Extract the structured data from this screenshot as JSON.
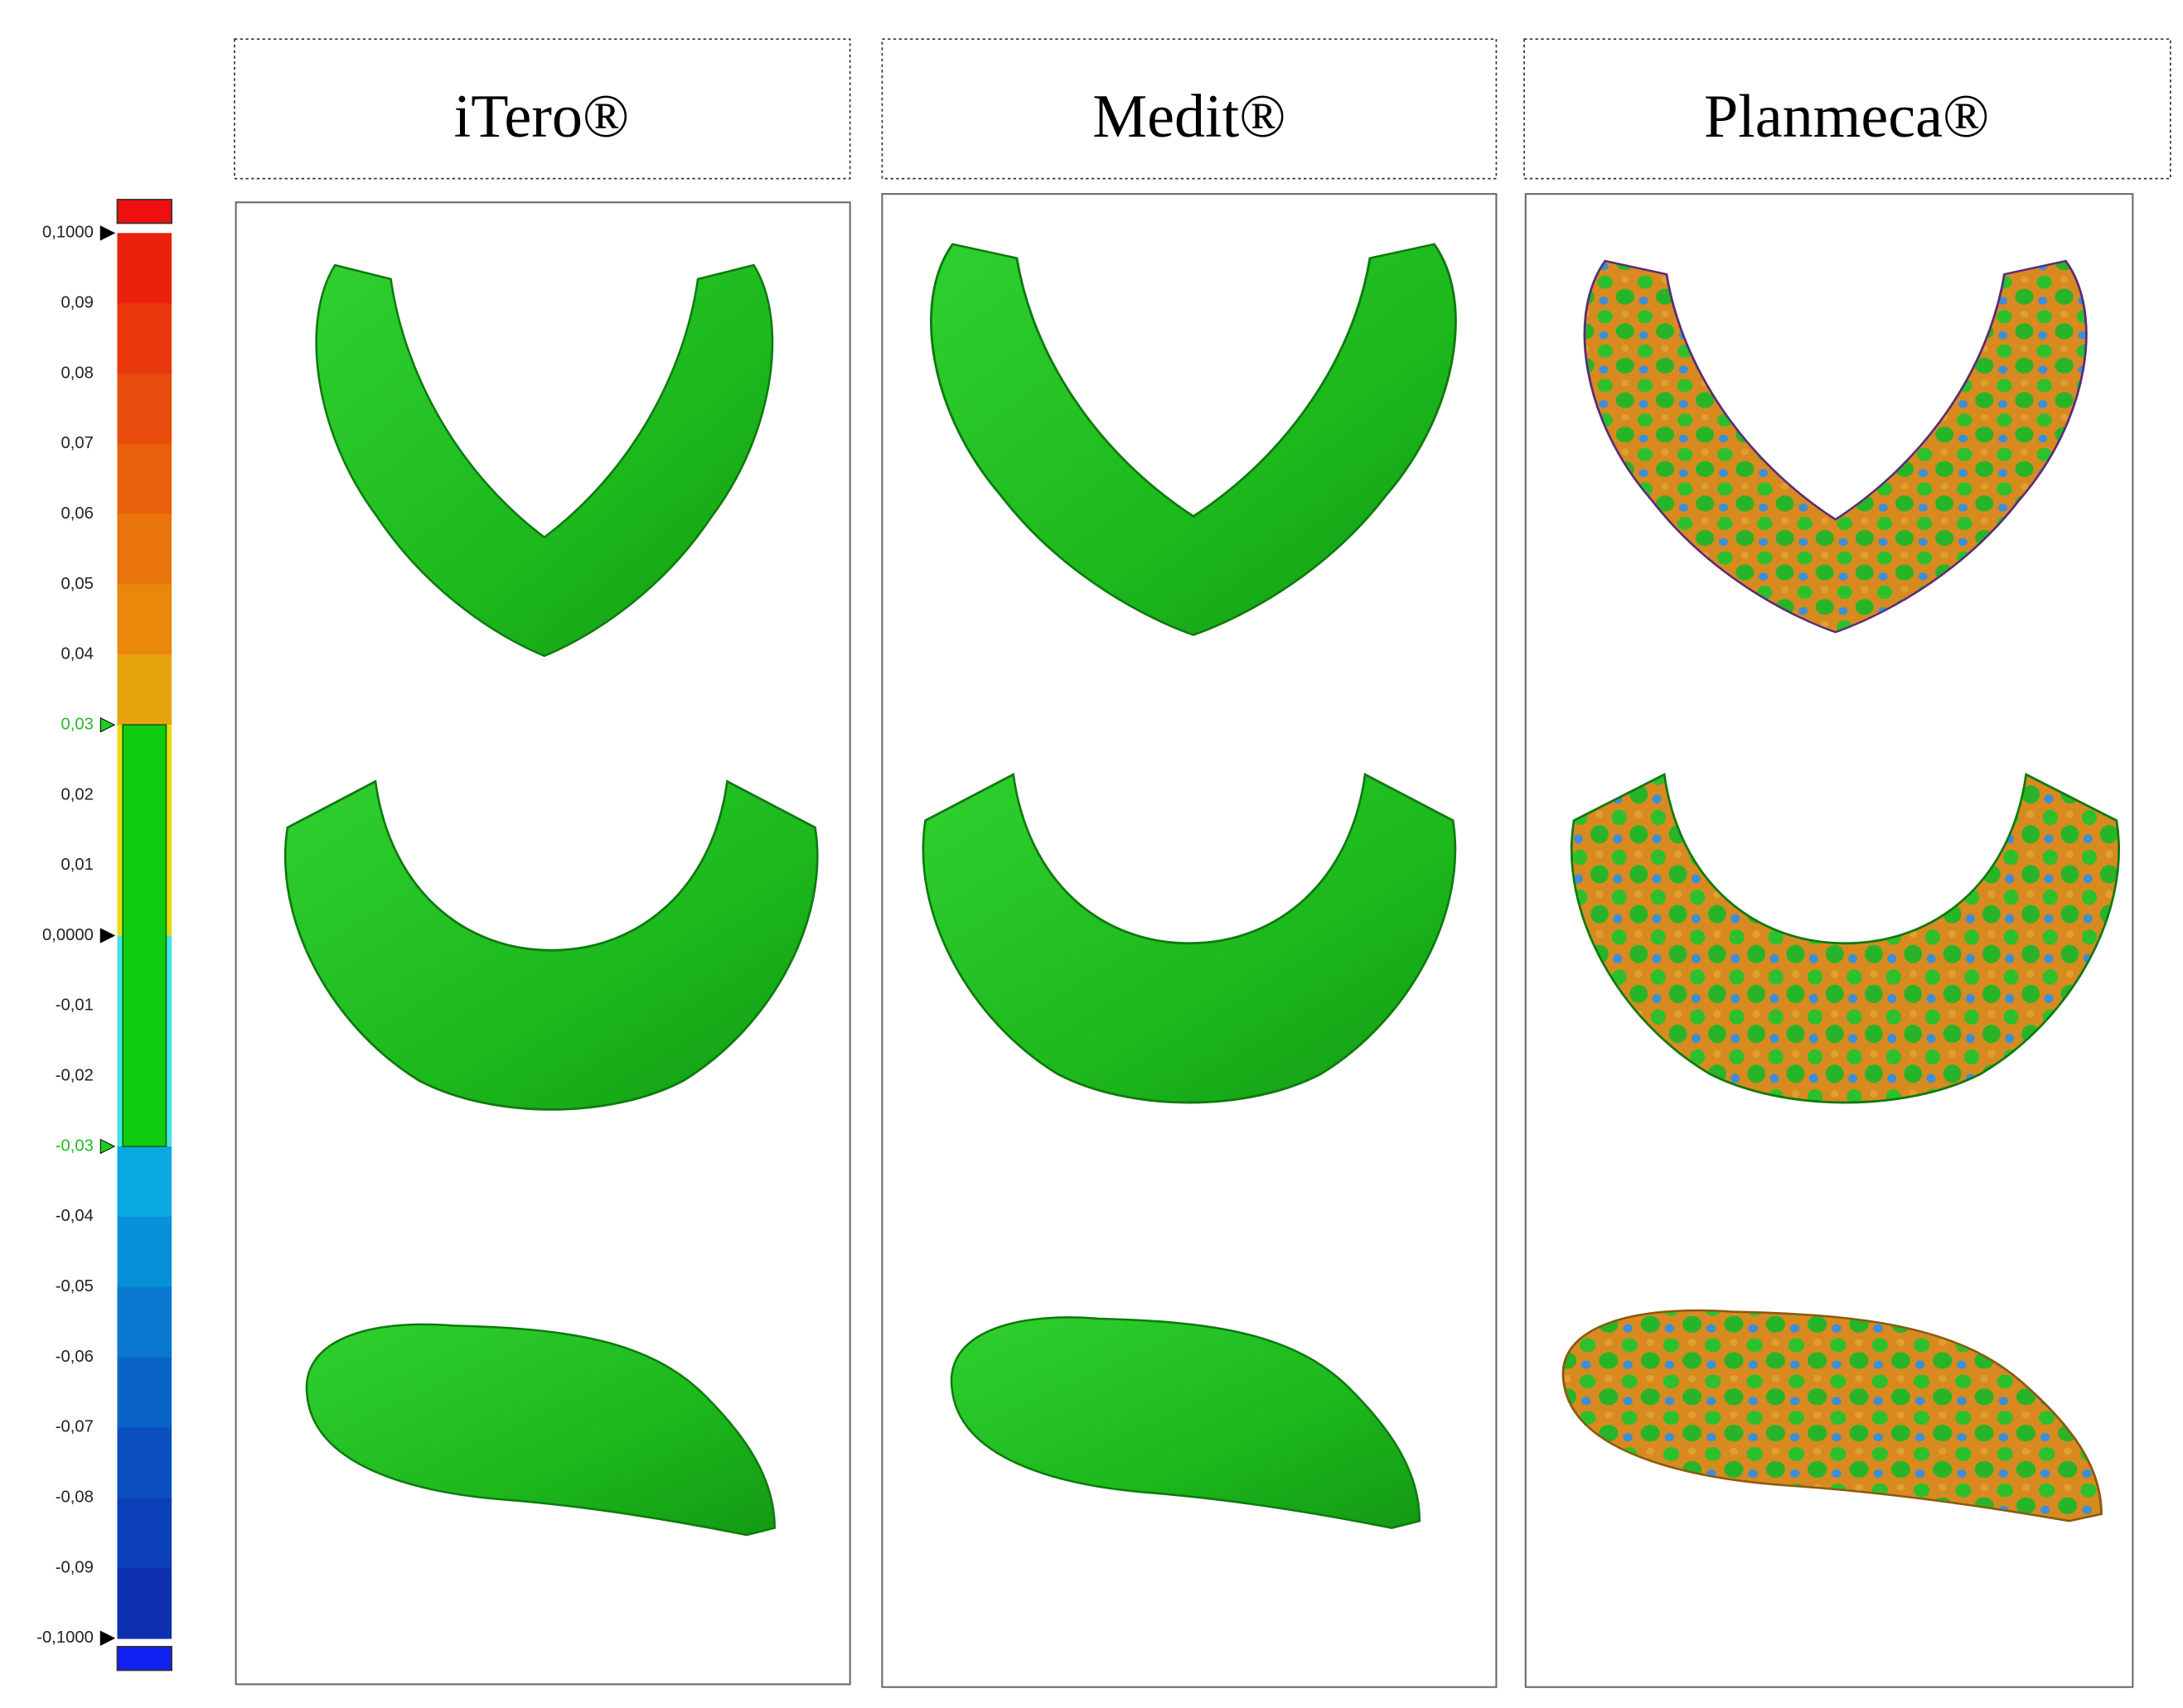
{
  "scale": {
    "labels": [
      "0,1000",
      "0,09",
      "0,08",
      "0,07",
      "0,06",
      "0,05",
      "0,04",
      "0,03",
      "0,02",
      "0,01",
      "0,0000",
      "-0,01",
      "-0,02",
      "-0,03",
      "-0,04",
      "-0,05",
      "-0,06",
      "-0,07",
      "-0,08",
      "-0,09",
      "-0,1000"
    ]
  },
  "panels": [
    {
      "title": "iTero®"
    },
    {
      "title": "Medit®"
    },
    {
      "title": "Planmeca®"
    }
  ]
}
